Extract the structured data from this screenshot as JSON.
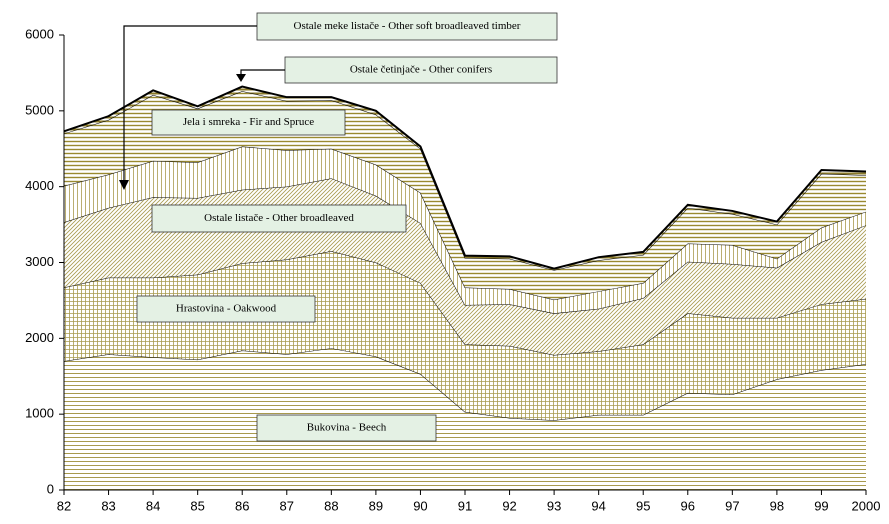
{
  "chart_data": {
    "type": "stacked_area",
    "categories": [
      "82",
      "83",
      "84",
      "85",
      "86",
      "87",
      "88",
      "89",
      "90",
      "91",
      "92",
      "93",
      "94",
      "95",
      "96",
      "97",
      "98",
      "99",
      "2000"
    ],
    "ylim": [
      0,
      6000
    ],
    "yticks": [
      0,
      1000,
      2000,
      3000,
      4000,
      5000,
      6000
    ],
    "series": [
      {
        "name": "Bukovina - Beech",
        "color": "#a89a4e",
        "values": [
          1700,
          1790,
          1750,
          1720,
          1840,
          1790,
          1870,
          1760,
          1530,
          1030,
          950,
          920,
          990,
          990,
          1280,
          1260,
          1460,
          1580,
          1660
        ]
      },
      {
        "name": "Hrastovina - Oakwood",
        "color": "#a89a4e",
        "values": [
          970,
          1010,
          1050,
          1120,
          1150,
          1250,
          1280,
          1240,
          1200,
          890,
          950,
          860,
          840,
          930,
          1050,
          1010,
          810,
          870,
          860
        ]
      },
      {
        "name": "Ostale listače - Other broadleaved",
        "color": "#a89a4e",
        "values": [
          860,
          920,
          1060,
          1010,
          970,
          960,
          960,
          880,
          790,
          520,
          550,
          550,
          560,
          610,
          680,
          710,
          660,
          820,
          970
        ]
      },
      {
        "name": "Ostale meke listače - Other soft broadleaved timber",
        "color": "#a89a4e",
        "values": [
          480,
          440,
          480,
          470,
          570,
          480,
          390,
          410,
          400,
          230,
          200,
          180,
          230,
          200,
          240,
          250,
          120,
          190,
          180
        ]
      },
      {
        "name": "Jela i smreka - Fir and Spruce",
        "color": "#9a8a30",
        "values": [
          690,
          720,
          870,
          710,
          730,
          650,
          640,
          660,
          580,
          390,
          400,
          390,
          410,
          370,
          470,
          410,
          450,
          710,
          480
        ]
      },
      {
        "name": "Ostale četinjače - Other conifers",
        "color": "#8a7a2a",
        "values": [
          30,
          50,
          60,
          30,
          60,
          50,
          40,
          50,
          30,
          30,
          30,
          20,
          40,
          40,
          40,
          40,
          40,
          50,
          50
        ]
      }
    ]
  }
}
